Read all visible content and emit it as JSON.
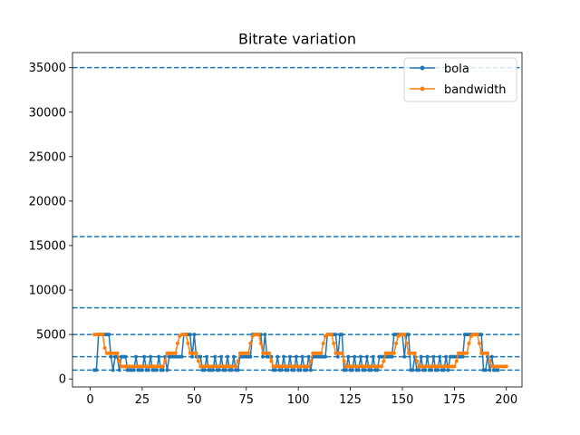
{
  "chart_data": {
    "type": "line",
    "title": "Bitrate variation",
    "xlabel": "",
    "ylabel": "",
    "xlim": [
      -8.5,
      207.5
    ],
    "ylim": [
      -900,
      36700
    ],
    "x_ticks": [
      0,
      25,
      50,
      75,
      100,
      125,
      150,
      175,
      200
    ],
    "y_ticks": [
      0,
      5000,
      10000,
      15000,
      20000,
      25000,
      30000,
      35000
    ],
    "grid": false,
    "legend": "top-right",
    "reference_lines": [
      1000,
      2500,
      5000,
      8000,
      16000,
      35000
    ],
    "series": [
      {
        "name": "bola",
        "color": "#1f77b4",
        "marker": "circle",
        "y": [
          1000,
          1000,
          5000,
          5000,
          5000,
          5000,
          5000,
          5000,
          2500,
          1000,
          2500,
          2500,
          1000,
          2500,
          2500,
          2500,
          1000,
          1000,
          1000,
          1000,
          2500,
          1000,
          1000,
          1000,
          2500,
          1000,
          1000,
          2500,
          1000,
          1000,
          1000,
          2500,
          1000,
          1000,
          2500,
          1000,
          2500,
          2500,
          2500,
          2500,
          2500,
          2500,
          2500,
          5000,
          5000,
          5000,
          5000,
          2500,
          5000,
          2500,
          2500,
          2500,
          1000,
          1000,
          2500,
          1000,
          1000,
          1000,
          2500,
          1000,
          1000,
          2500,
          1000,
          1000,
          2500,
          1000,
          1000,
          2500,
          1000,
          1000,
          2500,
          2500,
          2500,
          2500,
          2500,
          2500,
          5000,
          5000,
          5000,
          5000,
          5000,
          2500,
          5000,
          2500,
          2500,
          2500,
          1000,
          1000,
          2500,
          1000,
          1000,
          2500,
          1000,
          1000,
          2500,
          1000,
          1000,
          2500,
          1000,
          1000,
          2500,
          1000,
          1000,
          2500,
          1000,
          2500,
          2500,
          2500,
          2500,
          2500,
          2500,
          2500,
          5000,
          5000,
          5000,
          5000,
          5000,
          2500,
          5000,
          5000,
          1000,
          1000,
          2500,
          1000,
          1000,
          2500,
          1000,
          1000,
          2500,
          1000,
          1000,
          2500,
          1000,
          1000,
          2500,
          1000,
          1000,
          2500,
          2500,
          2500,
          2500,
          2500,
          2500,
          2500,
          5000,
          5000,
          5000,
          5000,
          5000,
          2500,
          5000,
          5000,
          1000,
          1000,
          2500,
          1000,
          1000,
          2500,
          1000,
          1000,
          2500,
          1000,
          1000,
          2500,
          1000,
          1000,
          2500,
          1000,
          1000,
          2500,
          1000,
          2500,
          2500,
          2500,
          2500,
          2500,
          2500,
          2500,
          5000,
          5000,
          5000,
          5000,
          5000,
          5000,
          5000,
          5000,
          5000,
          1000,
          1000,
          2500,
          1000,
          2500,
          1000,
          1000,
          1000
        ],
        "x_start": 2
      },
      {
        "name": "bandwidth",
        "color": "#ff7f0e",
        "marker": "circle",
        "y": [
          5000,
          5000,
          5000,
          5000,
          5000,
          3500,
          2900,
          2900,
          2900,
          2900,
          2900,
          2900,
          2000,
          1400,
          1400,
          1400,
          1400,
          1400,
          1400,
          1400,
          1400,
          1400,
          1400,
          1400,
          1400,
          1400,
          1400,
          1400,
          1400,
          1400,
          1400,
          1400,
          1400,
          1400,
          2000,
          2900,
          2900,
          2900,
          2900,
          2900,
          4000,
          4800,
          5000,
          5000,
          5000,
          4000,
          2900,
          2900,
          2900,
          2900,
          2000,
          1400,
          1400,
          1400,
          1400,
          1400,
          1400,
          1400,
          1400,
          1400,
          1400,
          1400,
          1400,
          1400,
          1400,
          1400,
          1400,
          1400,
          1400,
          2000,
          2900,
          2900,
          2900,
          2900,
          2900,
          4000,
          4800,
          5000,
          5000,
          5000,
          4000,
          2900,
          2900,
          2900,
          2900,
          2000,
          1400,
          1400,
          1400,
          1400,
          1400,
          1400,
          1400,
          1400,
          1400,
          1400,
          1400,
          1400,
          1400,
          1400,
          1400,
          1400,
          1400,
          1400,
          2000,
          2900,
          2900,
          2900,
          2900,
          2900,
          4000,
          4800,
          5000,
          5000,
          5000,
          4000,
          2900,
          2900,
          2900,
          2900,
          2000,
          1400,
          1400,
          1400,
          1400,
          1400,
          1400,
          1400,
          1400,
          1400,
          1400,
          1400,
          1400,
          1400,
          1400,
          1400,
          1400,
          1400,
          1400,
          2000,
          2900,
          2900,
          2900,
          2900,
          2900,
          4000,
          4800,
          5000,
          5000,
          5000,
          4000,
          2900,
          2900,
          2900,
          2900,
          2000,
          1400,
          1400,
          1400,
          1400,
          1400,
          1400,
          1400,
          1400,
          1400,
          1400,
          1400,
          1400,
          1400,
          1400,
          1400,
          1400,
          1400,
          1400,
          2000,
          2900,
          2900,
          2900,
          2900,
          2900,
          4000,
          4800,
          5000,
          5000,
          5000,
          4000,
          2900,
          2900,
          2900,
          2900,
          2000,
          1400,
          1400,
          1400,
          1400,
          1400,
          1400,
          1400,
          1400
        ],
        "x_start": 2
      }
    ]
  }
}
